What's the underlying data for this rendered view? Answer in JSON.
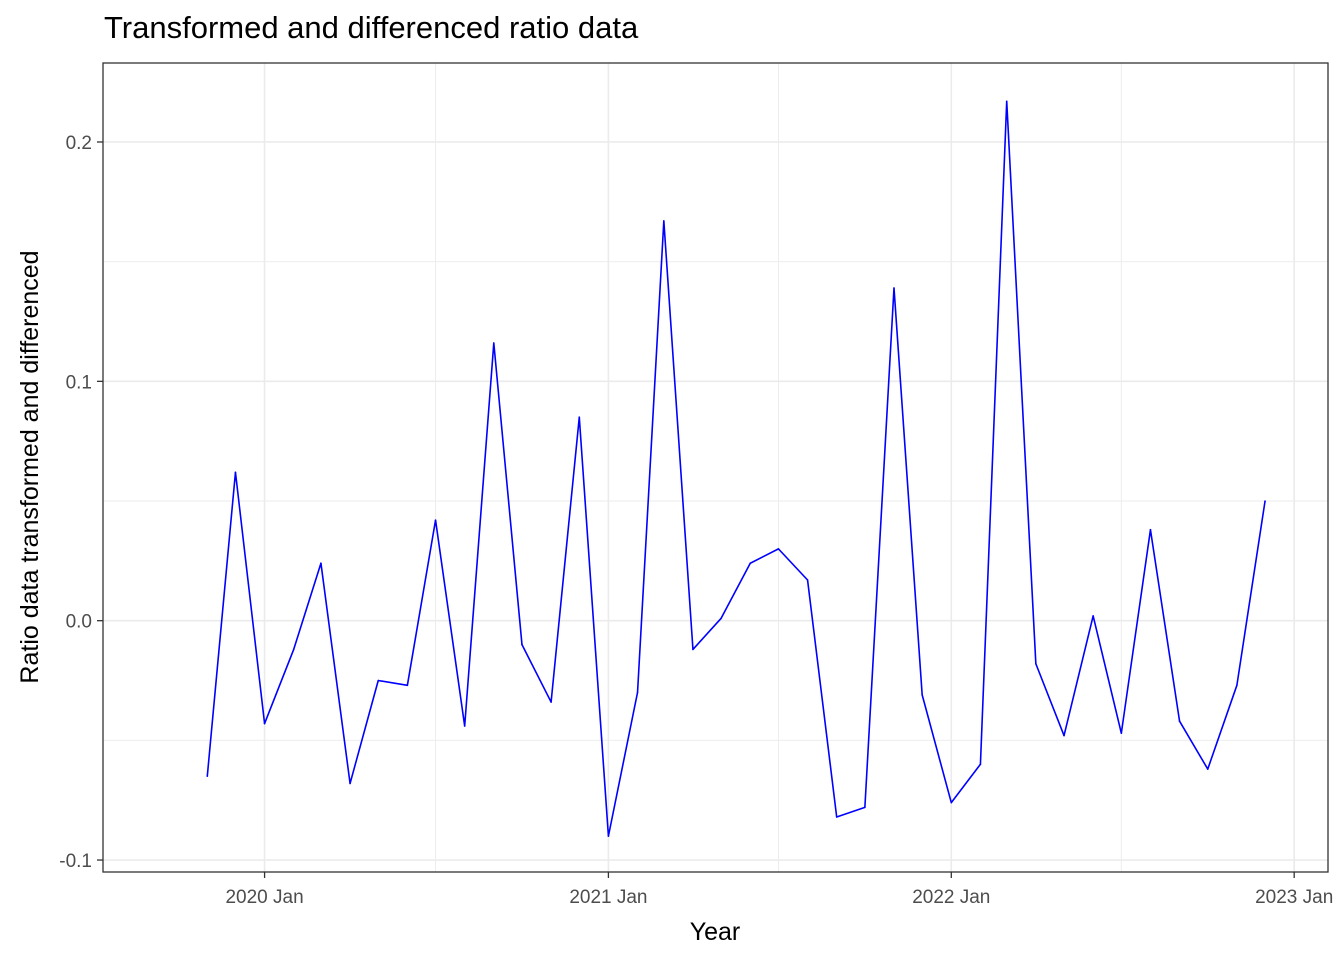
{
  "chart_data": {
    "type": "line",
    "title": "Transformed and differenced ratio data",
    "xlabel": "Year",
    "ylabel": "Ratio data transformed and differenced",
    "x_ticks": [
      "2020 Jan",
      "2021 Jan",
      "2022 Jan",
      "2023 Jan"
    ],
    "y_ticks": [
      "-0.1",
      "0.0",
      "0.1",
      "0.2"
    ],
    "xlim": [
      "2019-07-13",
      "2023-02-06"
    ],
    "ylim": [
      -0.105,
      0.233
    ],
    "grid": true,
    "series": [
      {
        "color": "#0000ff",
        "x": [
          "2019-11",
          "2019-12",
          "2020-01",
          "2020-02",
          "2020-03",
          "2020-04",
          "2020-05",
          "2020-06",
          "2020-07",
          "2020-08",
          "2020-09",
          "2020-10",
          "2020-11",
          "2020-12",
          "2021-01",
          "2021-02",
          "2021-03",
          "2021-04",
          "2021-05",
          "2021-06",
          "2021-07",
          "2021-08",
          "2021-09",
          "2021-10",
          "2021-11",
          "2021-12",
          "2022-01",
          "2022-02",
          "2022-03",
          "2022-04",
          "2022-05",
          "2022-06",
          "2022-07",
          "2022-08",
          "2022-09",
          "2022-10",
          "2022-11",
          "2022-12"
        ],
        "values": [
          -0.065,
          0.062,
          -0.043,
          -0.012,
          0.024,
          -0.068,
          -0.025,
          -0.027,
          0.042,
          -0.044,
          0.116,
          -0.01,
          -0.034,
          0.085,
          -0.09,
          -0.03,
          0.167,
          -0.012,
          0.001,
          0.024,
          0.03,
          0.017,
          -0.082,
          -0.078,
          0.139,
          -0.031,
          -0.076,
          -0.06,
          0.217,
          -0.018,
          -0.048,
          0.002,
          -0.047,
          0.038,
          -0.042,
          -0.062,
          -0.027,
          0.05
        ]
      }
    ]
  }
}
